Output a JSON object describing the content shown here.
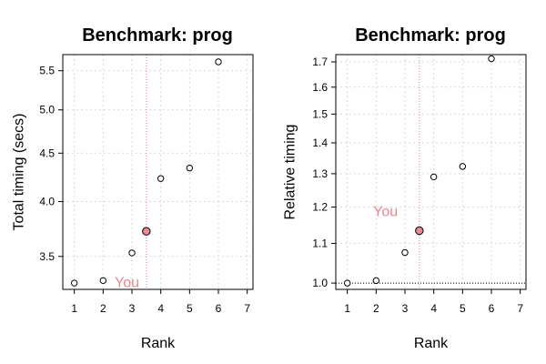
{
  "colors": {
    "you": "#e8878f",
    "you_fill": "#e88a8f"
  },
  "chart_data": [
    {
      "type": "scatter",
      "title": "Benchmark: prog",
      "xlabel": "Rank",
      "ylabel": "Total timing (secs)",
      "log_y": true,
      "grid": true,
      "xlim": [
        0.6,
        7.2
      ],
      "ylim": [
        3.23,
        5.72
      ],
      "xticks": [
        1,
        2,
        3,
        4,
        5,
        6,
        7
      ],
      "yticks": [
        3.5,
        4.0,
        4.5,
        5.0,
        5.5
      ],
      "ytick_labels": [
        "3.5",
        "4.0",
        "4.5",
        "5.0",
        "5.5"
      ],
      "points": [
        {
          "x": 1,
          "y": 3.28
        },
        {
          "x": 2,
          "y": 3.3
        },
        {
          "x": 3,
          "y": 3.53
        },
        {
          "x": 4,
          "y": 4.23
        },
        {
          "x": 5,
          "y": 4.34
        },
        {
          "x": 6,
          "y": 5.62
        }
      ],
      "you": {
        "x": 3.5,
        "y": 3.72,
        "label": "You",
        "label_x": 2.4,
        "label_y": 3.29
      },
      "reference_line": null
    },
    {
      "type": "scatter",
      "title": "Benchmark: prog",
      "xlabel": "Rank",
      "ylabel": "Relative timing",
      "log_y": true,
      "grid": true,
      "xlim": [
        0.6,
        7.2
      ],
      "ylim": [
        0.985,
        1.73
      ],
      "xticks": [
        1,
        2,
        3,
        4,
        5,
        6,
        7
      ],
      "yticks": [
        1.0,
        1.1,
        1.2,
        1.3,
        1.4,
        1.5,
        1.6,
        1.7
      ],
      "ytick_labels": [
        "1.0",
        "1.1",
        "1.2",
        "1.3",
        "1.4",
        "1.5",
        "1.6",
        "1.7"
      ],
      "points": [
        {
          "x": 1,
          "y": 1.0
        },
        {
          "x": 2,
          "y": 1.006
        },
        {
          "x": 3,
          "y": 1.076
        },
        {
          "x": 4,
          "y": 1.29
        },
        {
          "x": 5,
          "y": 1.323
        },
        {
          "x": 6,
          "y": 1.713
        }
      ],
      "you": {
        "x": 3.5,
        "y": 1.134,
        "label": "You",
        "label_x": 1.9,
        "label_y": 1.19
      },
      "reference_line": {
        "y": 1.0
      }
    }
  ]
}
